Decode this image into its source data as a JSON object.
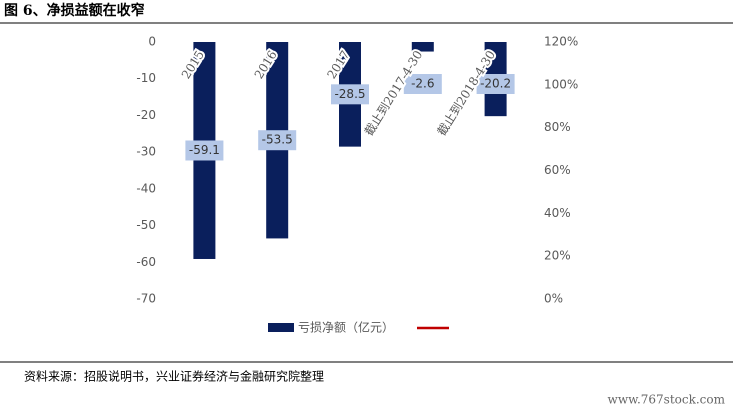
{
  "chart_data": {
    "type": "bar",
    "title": "图 6、净损益额在收窄",
    "categories": [
      "2015",
      "2016",
      "2017",
      "截止到2017-4-30",
      "截止到2018-4-30"
    ],
    "series": [
      {
        "name": "亏损净额（亿元）",
        "color": "#0a1f5c",
        "values": [
          -59.1,
          -53.5,
          -28.5,
          -2.6,
          -20.2
        ]
      }
    ],
    "ylim": [
      -70,
      0
    ],
    "yticks": [
      0,
      -10,
      -20,
      -30,
      -40,
      -50,
      -60,
      -70
    ],
    "y2lim": [
      0,
      120
    ],
    "y2ticks": [
      {
        "value": 0,
        "label": "0%"
      },
      {
        "value": 20,
        "label": "20%"
      },
      {
        "value": 40,
        "label": "40%"
      },
      {
        "value": 60,
        "label": "60%"
      },
      {
        "value": 80,
        "label": "80%"
      },
      {
        "value": 100,
        "label": "100%"
      },
      {
        "value": 120,
        "label": "120%"
      }
    ],
    "source": "资料来源：招股说明书，兴业证券经济与金融研究院整理",
    "watermark": "www.767stock.com"
  }
}
